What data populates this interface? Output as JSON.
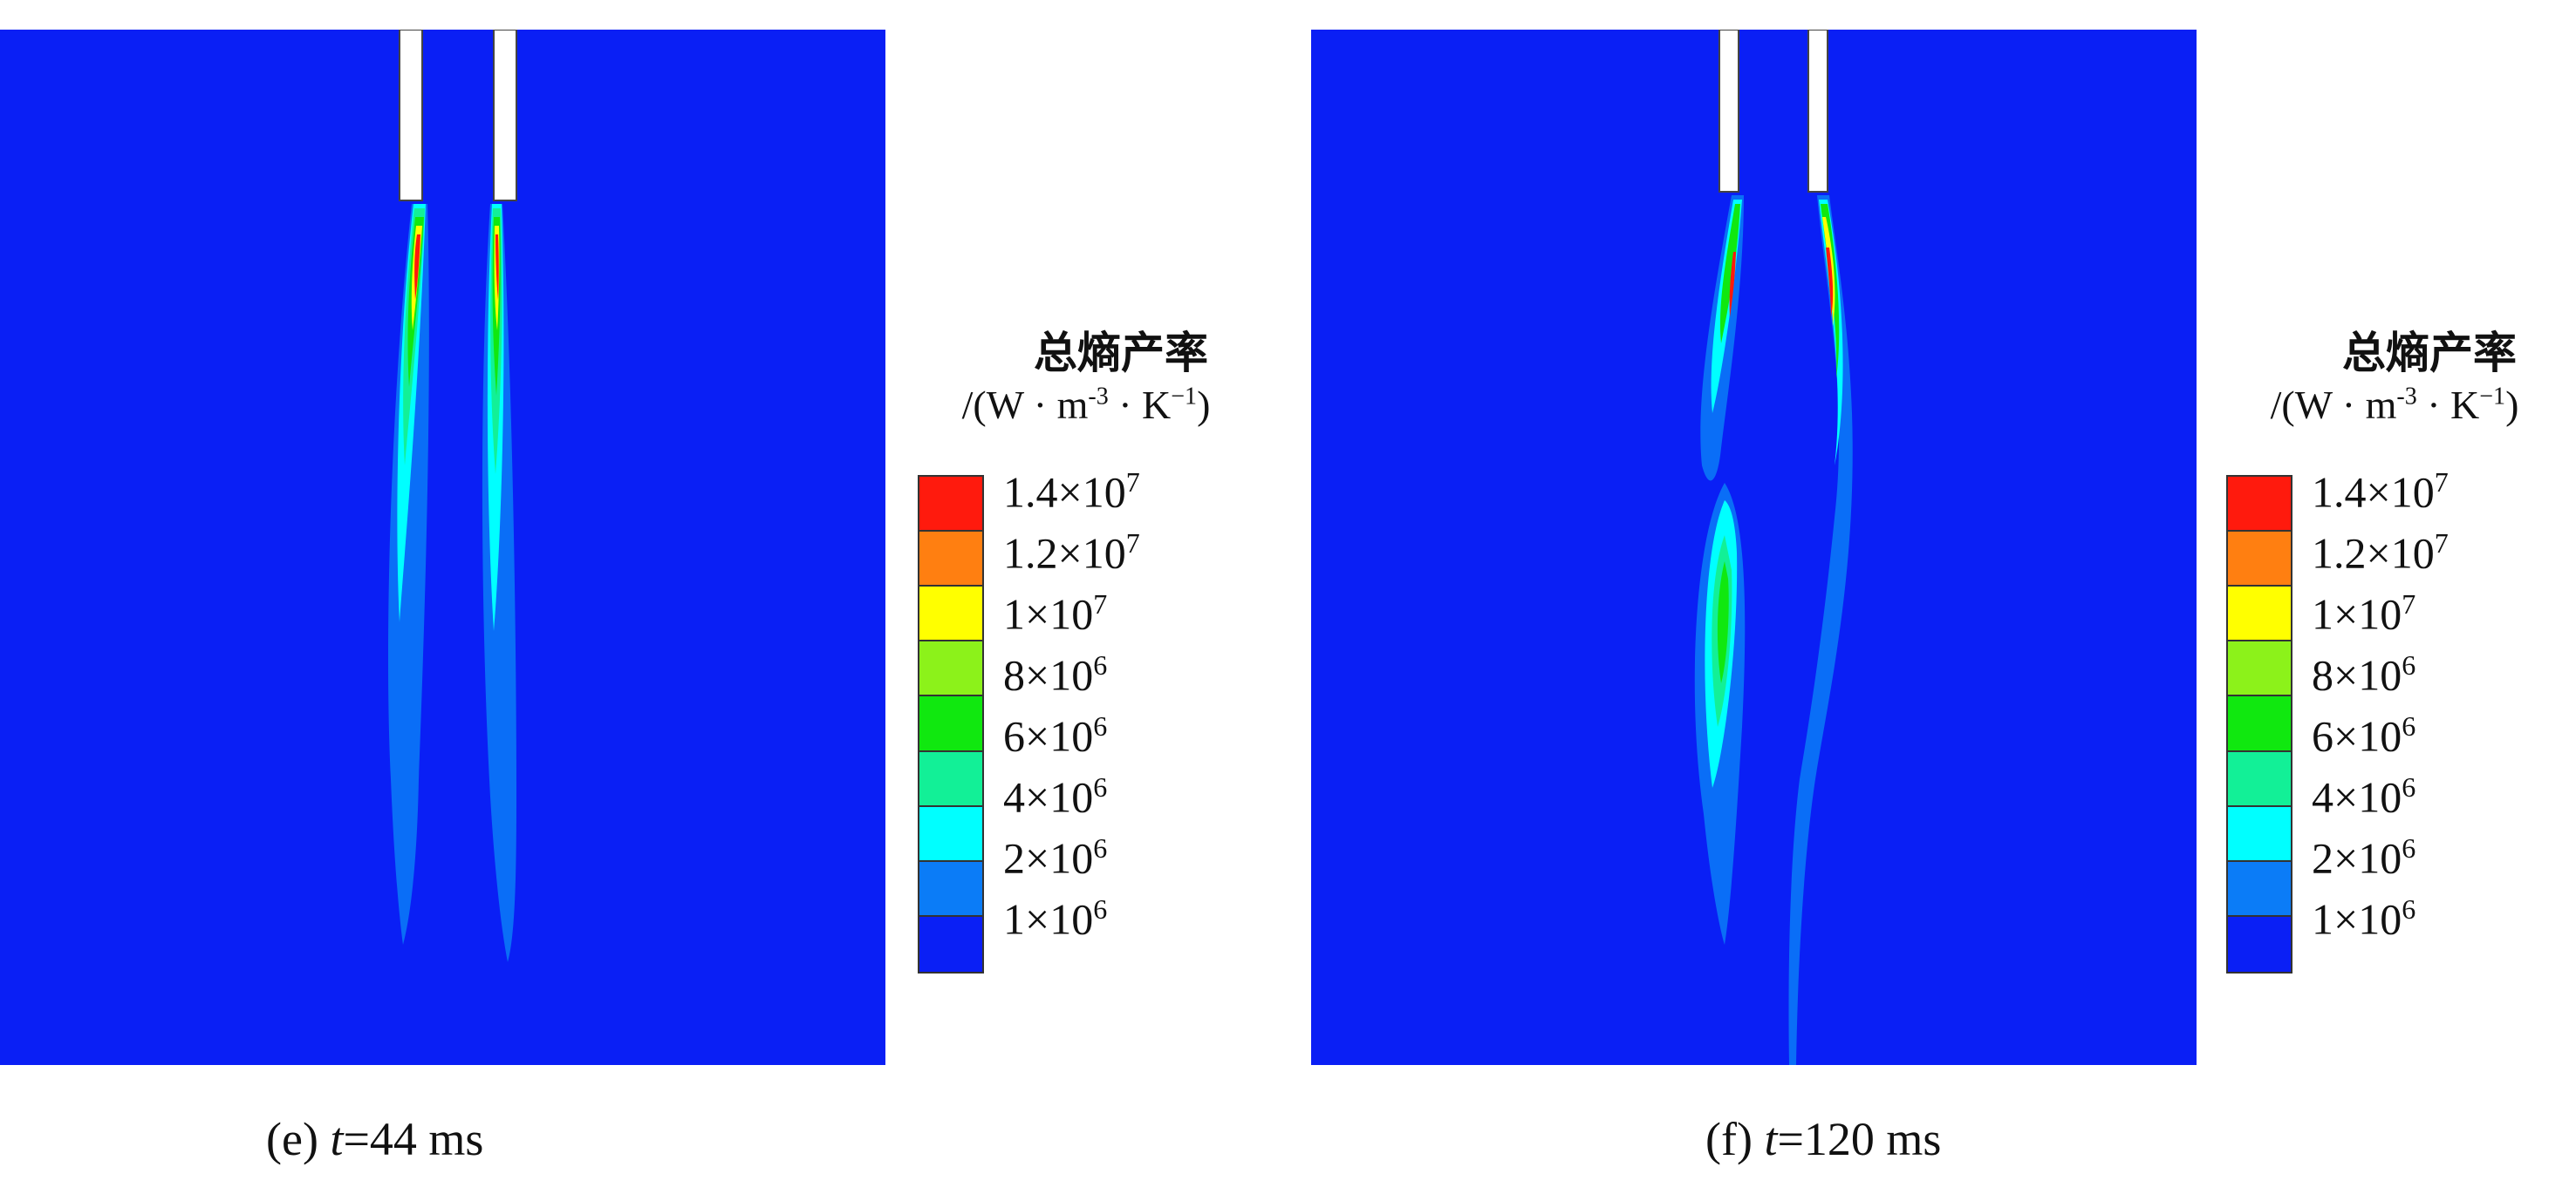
{
  "chart_data": [
    {
      "type": "contour",
      "panel": "e",
      "caption": {
        "prefix": "(e) ",
        "var": "t",
        "value": "=44 ms"
      },
      "legend": {
        "title": "总熵产率",
        "unit": {
          "p1": "/(W · m",
          "e1": "-3",
          "p2": " · K",
          "e2": "−1",
          "p3": ")"
        },
        "levels": [
          {
            "mant": "1.4×10",
            "exp": "7",
            "color": "#ff1a0d"
          },
          {
            "mant": "1.2×10",
            "exp": "7",
            "color": "#ff7f11"
          },
          {
            "mant": "1×10",
            "exp": "7",
            "color": "#ffff00"
          },
          {
            "mant": "8×10",
            "exp": "6",
            "color": "#8cf21a"
          },
          {
            "mant": "6×10",
            "exp": "6",
            "color": "#10e80f"
          },
          {
            "mant": "4×10",
            "exp": "6",
            "color": "#12f097"
          },
          {
            "mant": "2×10",
            "exp": "6",
            "color": "#00ffff"
          },
          {
            "mant": "1×10",
            "exp": "6",
            "color": "#0b7cf7"
          }
        ],
        "bottom_color": "#0a1ff5"
      }
    },
    {
      "type": "contour",
      "panel": "f",
      "caption": {
        "prefix": "(f) ",
        "var": "t",
        "value": "=120 ms"
      },
      "legend": {
        "title": "总熵产率",
        "unit": {
          "p1": "/(W · m",
          "e1": "-3",
          "p2": " · K",
          "e2": "−1",
          "p3": ")"
        },
        "levels": [
          {
            "mant": "1.4×10",
            "exp": "7",
            "color": "#ff1a0d"
          },
          {
            "mant": "1.2×10",
            "exp": "7",
            "color": "#ff7f11"
          },
          {
            "mant": "1×10",
            "exp": "7",
            "color": "#ffff00"
          },
          {
            "mant": "8×10",
            "exp": "6",
            "color": "#8cf21a"
          },
          {
            "mant": "6×10",
            "exp": "6",
            "color": "#10e80f"
          },
          {
            "mant": "4×10",
            "exp": "6",
            "color": "#12f097"
          },
          {
            "mant": "2×10",
            "exp": "6",
            "color": "#00ffff"
          },
          {
            "mant": "1×10",
            "exp": "6",
            "color": "#0b7cf7"
          }
        ],
        "bottom_color": "#0a1ff5"
      }
    }
  ]
}
